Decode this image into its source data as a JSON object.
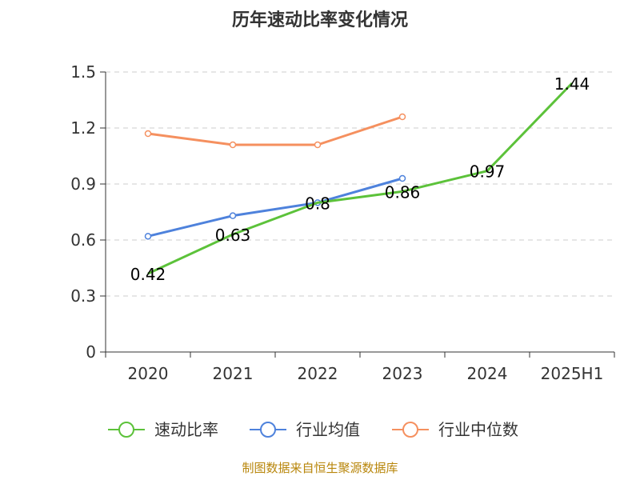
{
  "chart_data": {
    "type": "line",
    "title": "历年速动比率变化情况",
    "categories": [
      "2020",
      "2021",
      "2022",
      "2023",
      "2024",
      "2025H1"
    ],
    "yticks": [
      "0",
      "0.3",
      "0.6",
      "0.9",
      "1.2",
      "1.5"
    ],
    "ylim": [
      0,
      1.5
    ],
    "grid": true,
    "legend_position": "bottom",
    "series": [
      {
        "name": "速动比率",
        "color": "#5cc23a",
        "values": [
          0.42,
          0.63,
          0.8,
          0.86,
          0.97,
          1.44
        ],
        "labels": [
          "0.42",
          "0.63",
          "0.8",
          "0.86",
          "0.97",
          "1.44"
        ]
      },
      {
        "name": "行业均值",
        "color": "#4e82dc",
        "values": [
          0.62,
          0.73,
          0.8,
          0.93,
          null,
          null
        ]
      },
      {
        "name": "行业中位数",
        "color": "#f5905f",
        "values": [
          1.17,
          1.11,
          1.11,
          1.26,
          null,
          null
        ]
      }
    ]
  },
  "footer": "制图数据来自恒生聚源数据库"
}
